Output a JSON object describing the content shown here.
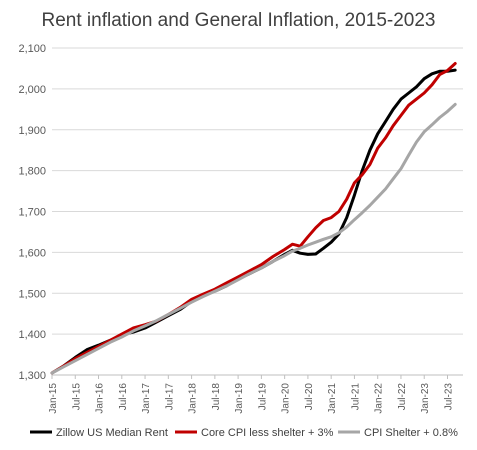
{
  "chart_data": {
    "type": "line",
    "title": "Rent inflation and General Inflation, 2015-2023",
    "xlabel": "",
    "ylabel": "",
    "ylim": [
      1300,
      2100
    ],
    "yticks": [
      "1,300",
      "1,400",
      "1,500",
      "1,600",
      "1,700",
      "1,800",
      "1,900",
      "2,000",
      "2,100"
    ],
    "xticks": [
      "Jan-15",
      "Jul-15",
      "Jan-16",
      "Jul-16",
      "Jan-17",
      "Jul-17",
      "Jan-18",
      "Jul-18",
      "Jan-19",
      "Jul-19",
      "Jan-20",
      "Jul-20",
      "Jan-21",
      "Jul-21",
      "Jan-22",
      "Jul-22",
      "Jan-23",
      "Jul-23"
    ],
    "legend_position": "bottom",
    "grid": "horizontal",
    "series": [
      {
        "name": "Zillow US Median Rent",
        "color": "#000000",
        "points": [
          [
            "Jan-15",
            1305
          ],
          [
            "Apr-15",
            1322
          ],
          [
            "Jul-15",
            1343
          ],
          [
            "Oct-15",
            1362
          ],
          [
            "Jan-16",
            1373
          ],
          [
            "Apr-16",
            1385
          ],
          [
            "Jul-16",
            1398
          ],
          [
            "Oct-16",
            1405
          ],
          [
            "Jan-17",
            1415
          ],
          [
            "Apr-17",
            1430
          ],
          [
            "Jul-17",
            1445
          ],
          [
            "Oct-17",
            1460
          ],
          [
            "Jan-18",
            1480
          ],
          [
            "Apr-18",
            1495
          ],
          [
            "Jul-18",
            1505
          ],
          [
            "Oct-18",
            1518
          ],
          [
            "Jan-19",
            1535
          ],
          [
            "Apr-19",
            1548
          ],
          [
            "Jul-19",
            1562
          ],
          [
            "Oct-19",
            1578
          ],
          [
            "Jan-20",
            1595
          ],
          [
            "Mar-20",
            1605
          ],
          [
            "May-20",
            1598
          ],
          [
            "Jul-20",
            1595
          ],
          [
            "Sep-20",
            1596
          ],
          [
            "Nov-20",
            1610
          ],
          [
            "Jan-21",
            1625
          ],
          [
            "Mar-21",
            1645
          ],
          [
            "May-21",
            1685
          ],
          [
            "Jul-21",
            1740
          ],
          [
            "Sep-21",
            1800
          ],
          [
            "Nov-21",
            1850
          ],
          [
            "Jan-22",
            1890
          ],
          [
            "Mar-22",
            1920
          ],
          [
            "May-22",
            1950
          ],
          [
            "Jul-22",
            1975
          ],
          [
            "Sep-22",
            1990
          ],
          [
            "Nov-22",
            2005
          ],
          [
            "Jan-23",
            2025
          ],
          [
            "Mar-23",
            2037
          ],
          [
            "May-23",
            2043
          ],
          [
            "Jul-23",
            2043
          ],
          [
            "Sep-23",
            2046
          ]
        ]
      },
      {
        "name": "Core CPI less shelter + 3%",
        "color": "#c00000",
        "points": [
          [
            "Jan-15",
            1305
          ],
          [
            "Apr-15",
            1322
          ],
          [
            "Jul-15",
            1340
          ],
          [
            "Oct-15",
            1355
          ],
          [
            "Jan-16",
            1370
          ],
          [
            "Apr-16",
            1385
          ],
          [
            "Jul-16",
            1400
          ],
          [
            "Oct-16",
            1415
          ],
          [
            "Jan-17",
            1423
          ],
          [
            "Apr-17",
            1432
          ],
          [
            "Jul-17",
            1448
          ],
          [
            "Oct-17",
            1465
          ],
          [
            "Jan-18",
            1485
          ],
          [
            "Apr-18",
            1498
          ],
          [
            "Jul-18",
            1510
          ],
          [
            "Oct-18",
            1525
          ],
          [
            "Jan-19",
            1540
          ],
          [
            "Apr-19",
            1555
          ],
          [
            "Jul-19",
            1570
          ],
          [
            "Oct-19",
            1590
          ],
          [
            "Jan-20",
            1607
          ],
          [
            "Mar-20",
            1620
          ],
          [
            "May-20",
            1615
          ],
          [
            "Jul-20",
            1638
          ],
          [
            "Sep-20",
            1660
          ],
          [
            "Nov-20",
            1678
          ],
          [
            "Jan-21",
            1685
          ],
          [
            "Mar-21",
            1700
          ],
          [
            "May-21",
            1730
          ],
          [
            "Jul-21",
            1770
          ],
          [
            "Sep-21",
            1790
          ],
          [
            "Nov-21",
            1815
          ],
          [
            "Jan-22",
            1855
          ],
          [
            "Mar-22",
            1880
          ],
          [
            "May-22",
            1910
          ],
          [
            "Jul-22",
            1935
          ],
          [
            "Sep-22",
            1960
          ],
          [
            "Nov-22",
            1975
          ],
          [
            "Jan-23",
            1990
          ],
          [
            "Mar-23",
            2010
          ],
          [
            "May-23",
            2035
          ],
          [
            "Jul-23",
            2045
          ],
          [
            "Sep-23",
            2062
          ]
        ]
      },
      {
        "name": "CPI Shelter + 0.8%",
        "color": "#a6a6a6",
        "points": [
          [
            "Jan-15",
            1305
          ],
          [
            "Apr-15",
            1320
          ],
          [
            "Jul-15",
            1335
          ],
          [
            "Oct-15",
            1350
          ],
          [
            "Jan-16",
            1365
          ],
          [
            "Apr-16",
            1380
          ],
          [
            "Jul-16",
            1393
          ],
          [
            "Oct-16",
            1408
          ],
          [
            "Jan-17",
            1420
          ],
          [
            "Apr-17",
            1433
          ],
          [
            "Jul-17",
            1448
          ],
          [
            "Oct-17",
            1463
          ],
          [
            "Jan-18",
            1478
          ],
          [
            "Apr-18",
            1492
          ],
          [
            "Jul-18",
            1505
          ],
          [
            "Oct-18",
            1518
          ],
          [
            "Jan-19",
            1533
          ],
          [
            "Apr-19",
            1548
          ],
          [
            "Jul-19",
            1562
          ],
          [
            "Oct-19",
            1578
          ],
          [
            "Jan-20",
            1592
          ],
          [
            "Mar-20",
            1603
          ],
          [
            "May-20",
            1610
          ],
          [
            "Jul-20",
            1618
          ],
          [
            "Sep-20",
            1625
          ],
          [
            "Nov-20",
            1632
          ],
          [
            "Jan-21",
            1638
          ],
          [
            "Mar-21",
            1648
          ],
          [
            "May-21",
            1662
          ],
          [
            "Jul-21",
            1680
          ],
          [
            "Sep-21",
            1697
          ],
          [
            "Nov-21",
            1715
          ],
          [
            "Jan-22",
            1735
          ],
          [
            "Mar-22",
            1755
          ],
          [
            "May-22",
            1780
          ],
          [
            "Jul-22",
            1805
          ],
          [
            "Sep-22",
            1838
          ],
          [
            "Nov-22",
            1870
          ],
          [
            "Jan-23",
            1895
          ],
          [
            "Mar-23",
            1912
          ],
          [
            "May-23",
            1930
          ],
          [
            "Jul-23",
            1945
          ],
          [
            "Sep-23",
            1962
          ]
        ]
      }
    ]
  }
}
